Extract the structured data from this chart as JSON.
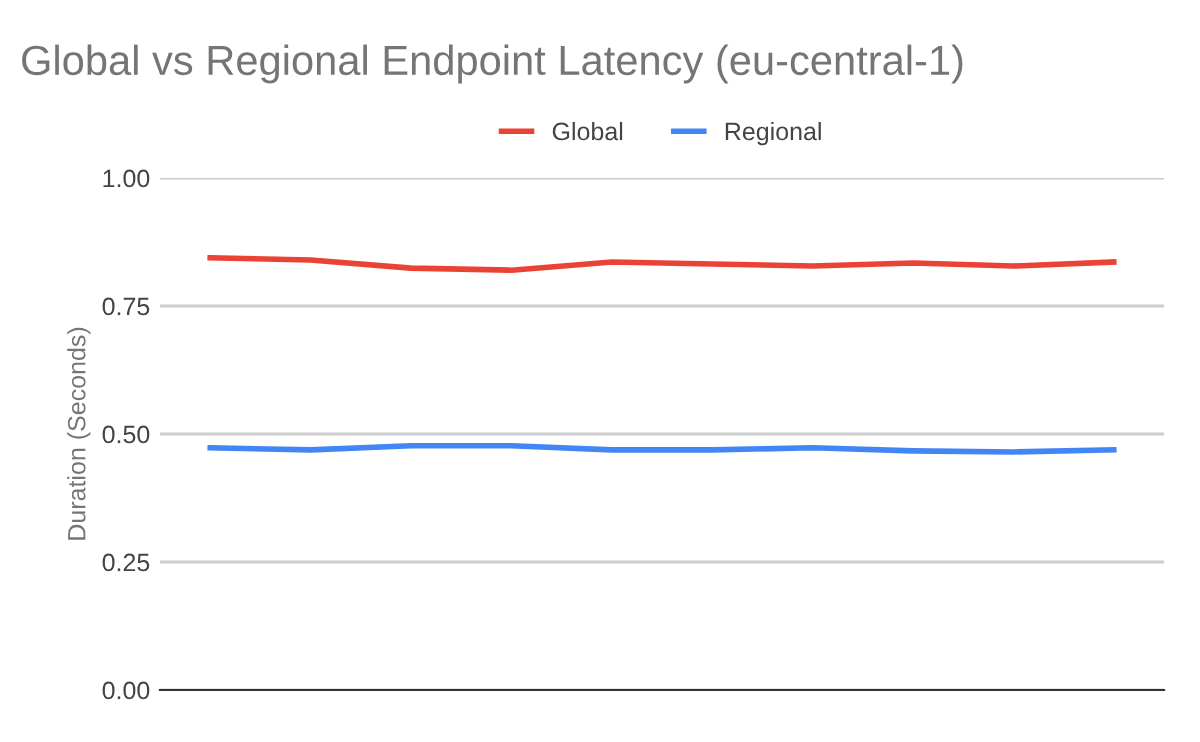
{
  "chart_data": {
    "type": "line",
    "title": "Global vs Regional Endpoint Latency (eu-central-1)",
    "ylabel": "Duration (Seconds)",
    "categories": [
      null,
      null,
      null,
      null,
      null,
      null,
      null,
      null,
      null,
      null
    ],
    "series": [
      {
        "name": "Global",
        "color": "#ea4335",
        "values": [
          0.844,
          0.84,
          0.824,
          0.82,
          0.836,
          0.832,
          0.828,
          0.834,
          0.828,
          0.836
        ]
      },
      {
        "name": "Regional",
        "color": "#4285f4",
        "values": [
          0.473,
          0.469,
          0.477,
          0.477,
          0.469,
          0.469,
          0.473,
          0.467,
          0.465,
          0.469
        ]
      }
    ],
    "ylim": [
      0,
      1
    ],
    "yticks": [
      {
        "value": 0,
        "label": "0.00"
      },
      {
        "value": 0.25,
        "label": "0.25"
      },
      {
        "value": 0.5,
        "label": "0.50"
      },
      {
        "value": 0.75,
        "label": "0.75"
      },
      {
        "value": 1,
        "label": "1.00"
      }
    ],
    "grid": "y",
    "legend": "top",
    "marker": "none",
    "line_style": "solid"
  }
}
